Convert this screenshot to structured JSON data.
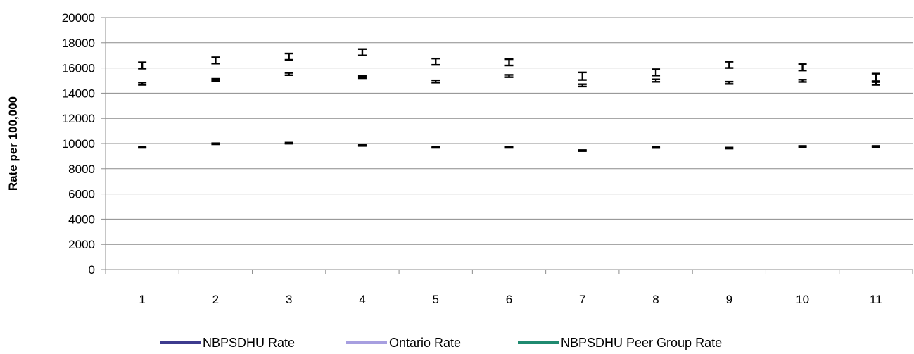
{
  "chart_data": {
    "type": "scatter",
    "title": "",
    "xlabel": "",
    "ylabel": "Rate per 100,000",
    "categories": [
      "1",
      "2",
      "3",
      "4",
      "5",
      "6",
      "7",
      "8",
      "9",
      "10",
      "11"
    ],
    "ylim": [
      0,
      20000
    ],
    "yticks": [
      "0",
      "2000",
      "4000",
      "6000",
      "8000",
      "10000",
      "12000",
      "14000",
      "16000",
      "18000",
      "20000"
    ],
    "grid": true,
    "legend_position": "bottom",
    "series": [
      {
        "name": "NBPSDHU Rate",
        "color": "#3d3b8e",
        "values": [
          16200,
          16600,
          16900,
          17250,
          16500,
          16450,
          15350,
          15650,
          16250,
          16050,
          15250
        ],
        "err_low": [
          15950,
          16350,
          16650,
          17000,
          16250,
          16200,
          15050,
          15400,
          16000,
          15800,
          14950
        ],
        "err_high": [
          16450,
          16850,
          17150,
          17500,
          16750,
          16700,
          15650,
          15900,
          16500,
          16300,
          15550
        ]
      },
      {
        "name": "Ontario Rate",
        "color": "#a79fe0",
        "values": [
          9700,
          9980,
          10030,
          9850,
          9700,
          9700,
          9440,
          9690,
          9640,
          9770,
          9770
        ],
        "err_low": [
          9660,
          9940,
          9990,
          9810,
          9660,
          9660,
          9400,
          9650,
          9600,
          9730,
          9730
        ],
        "err_high": [
          9740,
          10020,
          10070,
          9890,
          9740,
          9740,
          9480,
          9730,
          9680,
          9810,
          9810
        ]
      },
      {
        "name": "NBPSDHU Peer Group Rate",
        "color": "#1f8a70",
        "values": [
          14750,
          15050,
          15520,
          15280,
          14930,
          15360,
          14620,
          15000,
          14820,
          14980,
          14770
        ],
        "err_low": [
          14660,
          14960,
          15430,
          15190,
          14840,
          15270,
          14530,
          14900,
          14730,
          14890,
          14660
        ],
        "err_high": [
          14840,
          15140,
          15610,
          15370,
          15020,
          15450,
          14710,
          15100,
          14910,
          15070,
          14880
        ]
      }
    ]
  }
}
